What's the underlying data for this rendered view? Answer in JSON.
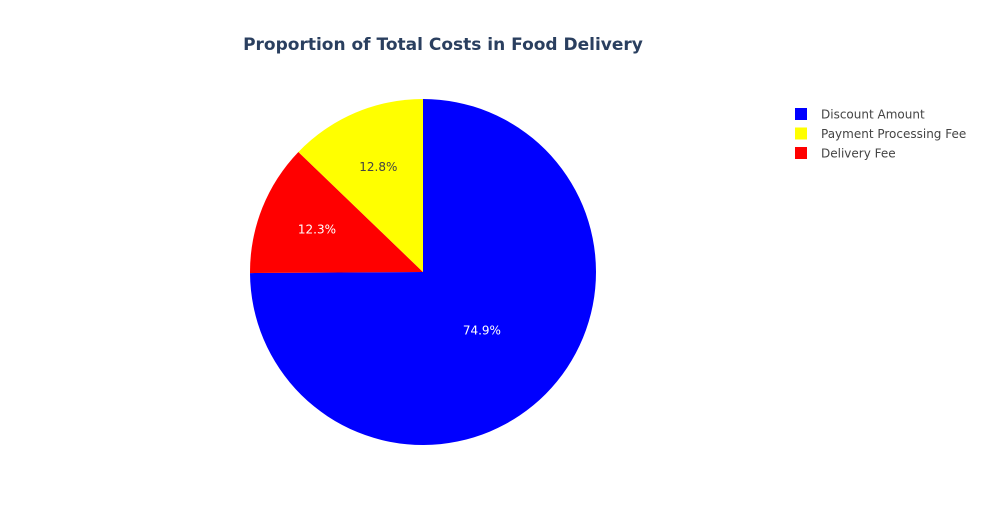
{
  "chart_data": {
    "type": "pie",
    "title": "Proportion of Total Costs in Food Delivery",
    "title_color": "#2a3f5f",
    "direction": "clockwise",
    "start_angle_deg": 0,
    "slices": [
      {
        "label": "Discount Amount",
        "value": 74.9,
        "text": "74.9%",
        "color": "#0000ff",
        "text_color": "#ffffff"
      },
      {
        "label": "Delivery Fee",
        "value": 12.3,
        "text": "12.3%",
        "color": "#ff0000",
        "text_color": "#ffffff"
      },
      {
        "label": "Payment Processing Fee",
        "value": 12.8,
        "text": "12.8%",
        "color": "#ffff00",
        "text_color": "#444444"
      }
    ],
    "legend": {
      "placement": "top-right",
      "items": [
        {
          "label": "Discount Amount",
          "color": "#0000ff"
        },
        {
          "label": "Payment Processing Fee",
          "color": "#ffff00"
        },
        {
          "label": "Delivery Fee",
          "color": "#ff0000"
        }
      ],
      "text_color": "#444444"
    }
  }
}
